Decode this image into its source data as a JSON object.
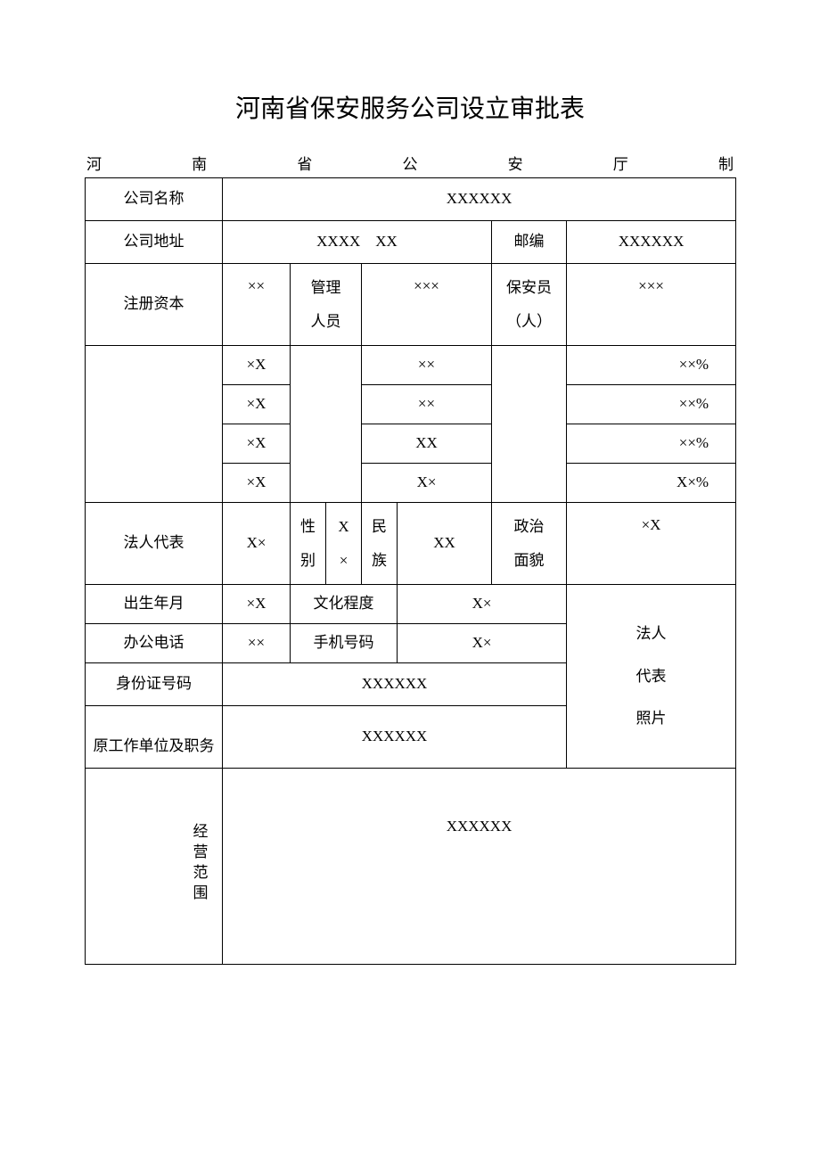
{
  "title": "河南省保安服务公司设立审批表",
  "subtitle_chars": [
    "河",
    "南",
    "省",
    "公",
    "安",
    "厅",
    "制"
  ],
  "labels": {
    "company_name": "公司名称",
    "company_address": "公司地址",
    "postcode": "邮编",
    "registered_capital": "注册资本",
    "management": "管理\n人员",
    "security_personnel": "保安员\n（人）",
    "legal_rep": "法人代表",
    "gender": "性\n别",
    "ethnicity": "民\n族",
    "political": "政治\n面貌",
    "birth": "出生年月",
    "education": "文化程度",
    "office_phone": "办公电话",
    "mobile": "手机号码",
    "id_number": "身份证号码",
    "prev_work": "原工作单位及职务",
    "photo": "法人\n代表\n照片",
    "business_scope": "经营范围"
  },
  "values": {
    "company_name": "XXXXXX",
    "company_address": "XXXX　XX",
    "postcode": "XXXXXX",
    "registered_capital": "××",
    "management_count": "×××",
    "security_count": "×××",
    "detail_rows": [
      {
        "c1": "×X",
        "c2": "××",
        "c3": "××%"
      },
      {
        "c1": "×X",
        "c2": "××",
        "c3": "××%"
      },
      {
        "c1": "×X",
        "c2": "XX",
        "c3": "××%"
      },
      {
        "c1": "×X",
        "c2": "X×",
        "c3": "X×%"
      }
    ],
    "legal_rep": "X×",
    "gender": "X\n×",
    "ethnicity": "XX",
    "political": "×X",
    "birth": "×X",
    "education": "X×",
    "office_phone": "××",
    "mobile": "X×",
    "id_number": "XXXXXX",
    "prev_work": "XXXXXX",
    "business_scope": "XXXXXX"
  },
  "colors": {
    "border": "#000000",
    "text": "#000000",
    "background": "#ffffff"
  },
  "fonts": {
    "title_size": 28,
    "body_size": 17,
    "family": "SimSun"
  }
}
